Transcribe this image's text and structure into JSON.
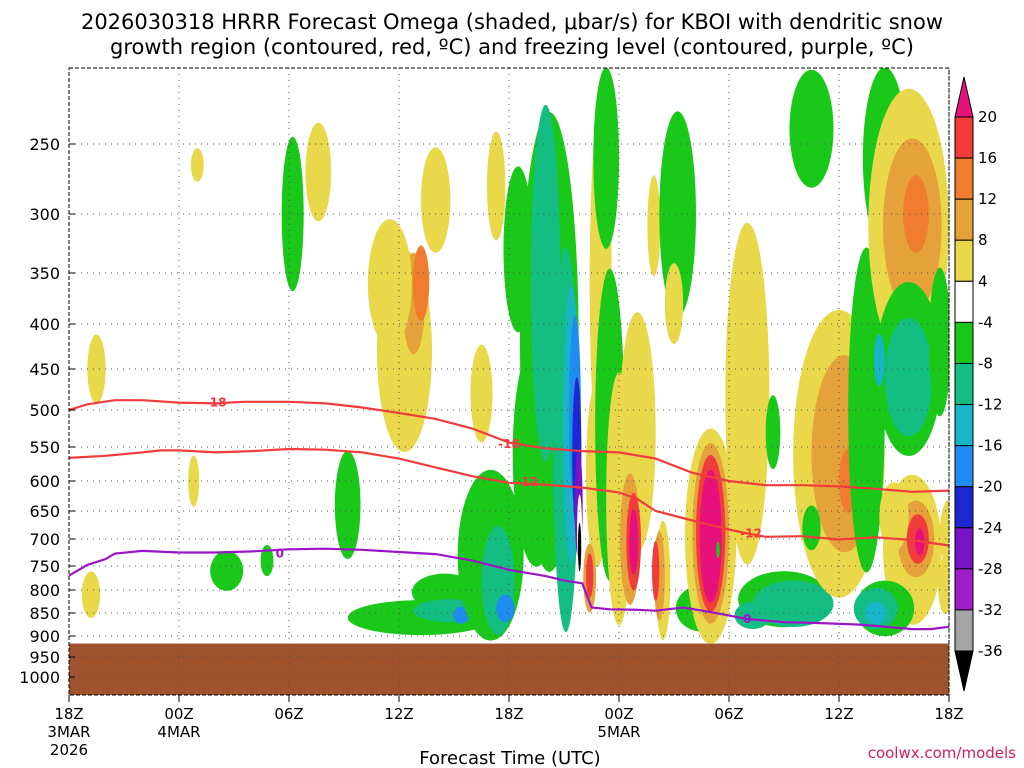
{
  "page": {
    "title_line1": "2026030318 HRRR Forecast Omega (shaded, μbar/s) for KBOI with dendritic snow",
    "title_line2": "growth region (contoured, red, ºC) and freezing level (contoured, purple, ºC)",
    "credit": "coolwx.com/models"
  },
  "chart_data": {
    "type": "heatmap",
    "title": "2026030318 HRRR Forecast Omega (shaded, μbar/s) for KBOI with dendritic snow growth region (contoured, red, ºC) and freezing level (contoured, purple, ºC)",
    "xlabel": "Forecast Time (UTC)",
    "ylabel": "",
    "x_hours_range": [
      0,
      48
    ],
    "y_pressure_range_hpa": [
      1050,
      200
    ],
    "y_axis": "pressure (hPa), reversed, log-like",
    "y_ticks": [
      250,
      300,
      350,
      400,
      450,
      500,
      550,
      600,
      650,
      700,
      750,
      800,
      850,
      900,
      950,
      1000
    ],
    "x_ticks": [
      {
        "hour": 0,
        "label": "18Z",
        "sub1": "3MAR",
        "sub2": "2026"
      },
      {
        "hour": 6,
        "label": "00Z",
        "sub1": "4MAR",
        "sub2": ""
      },
      {
        "hour": 12,
        "label": "06Z",
        "sub1": "",
        "sub2": ""
      },
      {
        "hour": 18,
        "label": "12Z",
        "sub1": "",
        "sub2": ""
      },
      {
        "hour": 24,
        "label": "18Z",
        "sub1": "",
        "sub2": ""
      },
      {
        "hour": 30,
        "label": "00Z",
        "sub1": "5MAR",
        "sub2": ""
      },
      {
        "hour": 36,
        "label": "06Z",
        "sub1": "",
        "sub2": ""
      },
      {
        "hour": 42,
        "label": "12Z",
        "sub1": "",
        "sub2": ""
      },
      {
        "hour": 48,
        "label": "18Z",
        "sub1": "",
        "sub2": ""
      }
    ],
    "ground_top_hpa": 918,
    "colorbar": {
      "labels": [
        "20",
        "16",
        "12",
        "8",
        "4",
        "-4",
        "-8",
        "-12",
        "-16",
        "-20",
        "-24",
        "-28",
        "-32",
        "-36"
      ],
      "bins": [
        {
          "color": "#e8107a"
        },
        {
          "color": "#f23c3c"
        },
        {
          "color": "#f07d2e"
        },
        {
          "color": "#e6a23a"
        },
        {
          "color": "#e8d84a"
        },
        {
          "color": "#ffffff"
        },
        {
          "color": "#19c819"
        },
        {
          "color": "#14be82"
        },
        {
          "color": "#18b4c8"
        },
        {
          "color": "#1e8cf0"
        },
        {
          "color": "#1c28d2"
        },
        {
          "color": "#7814c8"
        },
        {
          "color": "#a01ec8"
        },
        {
          "color": "#a5a5a5"
        },
        {
          "color": "#000000"
        }
      ]
    },
    "omega_regions": [
      {
        "h": 7.0,
        "p": 265,
        "dh": 0.35,
        "dp": 12,
        "color": "#e8d84a"
      },
      {
        "h": 1.5,
        "p": 450,
        "dh": 0.5,
        "dp": 40,
        "color": "#e8d84a"
      },
      {
        "h": 1.2,
        "p": 810,
        "dh": 0.5,
        "dp": 50,
        "color": "#e8d84a"
      },
      {
        "h": 6.8,
        "p": 600,
        "dh": 0.3,
        "dp": 40,
        "color": "#e8d84a"
      },
      {
        "h": 8.6,
        "p": 760,
        "dh": 0.9,
        "dp": 40,
        "color": "#19c819"
      },
      {
        "h": 10.8,
        "p": 740,
        "dh": 0.35,
        "dp": 30,
        "color": "#19c819"
      },
      {
        "h": 12.2,
        "p": 300,
        "dh": 0.6,
        "dp": 60,
        "color": "#19c819"
      },
      {
        "h": 13.6,
        "p": 270,
        "dh": 0.7,
        "dp": 35,
        "color": "#e8d84a"
      },
      {
        "h": 15.2,
        "p": 640,
        "dh": 0.7,
        "dp": 90,
        "color": "#19c819"
      },
      {
        "h": 18.3,
        "p": 430,
        "dh": 1.5,
        "dp": 110,
        "color": "#e8d84a"
      },
      {
        "h": 18.8,
        "p": 380,
        "dh": 0.6,
        "dp": 50,
        "color": "#e6a23a"
      },
      {
        "h": 19.2,
        "p": 360,
        "dh": 0.45,
        "dp": 35,
        "color": "#f07d2e"
      },
      {
        "h": 17.5,
        "p": 360,
        "dh": 1.2,
        "dp": 60,
        "color": "#e8d84a"
      },
      {
        "h": 20.0,
        "p": 290,
        "dh": 0.8,
        "dp": 40,
        "color": "#e8d84a"
      },
      {
        "h": 19.2,
        "p": 860,
        "dh": 4.0,
        "dp": 38,
        "color": "#19c819"
      },
      {
        "h": 20.5,
        "p": 805,
        "dh": 1.8,
        "dp": 40,
        "color": "#19c819"
      },
      {
        "h": 20.8,
        "p": 845,
        "dh": 2.0,
        "dp": 25,
        "color": "#14be82"
      },
      {
        "h": 21.4,
        "p": 855,
        "dh": 0.45,
        "dp": 18,
        "color": "#1e8cf0"
      },
      {
        "h": 23.0,
        "p": 730,
        "dh": 1.8,
        "dp": 160,
        "color": "#19c819"
      },
      {
        "h": 23.4,
        "p": 780,
        "dh": 0.9,
        "dp": 110,
        "color": "#14be82"
      },
      {
        "h": 23.8,
        "p": 840,
        "dh": 0.5,
        "dp": 30,
        "color": "#1e8cf0"
      },
      {
        "h": 22.5,
        "p": 480,
        "dh": 0.6,
        "dp": 60,
        "color": "#e8d84a"
      },
      {
        "h": 23.3,
        "p": 280,
        "dh": 0.5,
        "dp": 40,
        "color": "#e8d84a"
      },
      {
        "h": 24.5,
        "p": 330,
        "dh": 0.8,
        "dp": 70,
        "color": "#19c819"
      },
      {
        "h": 25.5,
        "p": 560,
        "dh": 1.3,
        "dp": 160,
        "color": "#19c819"
      },
      {
        "h": 26.2,
        "p": 420,
        "dh": 1.6,
        "dp": 260,
        "color": "#19c819"
      },
      {
        "h": 26.0,
        "p": 360,
        "dh": 0.8,
        "dp": 160,
        "color": "#14be82"
      },
      {
        "h": 27.1,
        "p": 540,
        "dh": 0.7,
        "dp": 250,
        "color": "#14be82"
      },
      {
        "h": 27.4,
        "p": 520,
        "dh": 0.45,
        "dp": 180,
        "color": "#18b4c8"
      },
      {
        "h": 27.6,
        "p": 500,
        "dh": 0.32,
        "dp": 120,
        "color": "#1e8cf0"
      },
      {
        "h": 27.7,
        "p": 560,
        "dh": 0.25,
        "dp": 110,
        "color": "#1c28d2"
      },
      {
        "h": 27.8,
        "p": 640,
        "dh": 0.22,
        "dp": 90,
        "color": "#7814c8"
      },
      {
        "h": 27.85,
        "p": 690,
        "dh": 0.14,
        "dp": 70,
        "color": "#ffffff"
      },
      {
        "h": 27.85,
        "p": 715,
        "dh": 0.09,
        "dp": 45,
        "color": "#000000"
      },
      {
        "h": 29.0,
        "p": 360,
        "dh": 0.6,
        "dp": 160,
        "color": "#e8d84a"
      },
      {
        "h": 28.8,
        "p": 590,
        "dh": 0.6,
        "dp": 140,
        "color": "#e8d84a"
      },
      {
        "h": 29.3,
        "p": 260,
        "dh": 0.7,
        "dp": 70,
        "color": "#19c819"
      },
      {
        "h": 29.5,
        "p": 520,
        "dh": 0.8,
        "dp": 200,
        "color": "#19c819"
      },
      {
        "h": 28.4,
        "p": 775,
        "dh": 0.35,
        "dp": 70,
        "color": "#e6a23a"
      },
      {
        "h": 28.4,
        "p": 770,
        "dh": 0.2,
        "dp": 45,
        "color": "#f23c3c"
      },
      {
        "h": 31.0,
        "p": 530,
        "dh": 1.0,
        "dp": 160,
        "color": "#e8d84a"
      },
      {
        "h": 30.0,
        "p": 630,
        "dh": 0.7,
        "dp": 200,
        "color": "#e8d84a"
      },
      {
        "h": 30.6,
        "p": 700,
        "dh": 0.55,
        "dp": 120,
        "color": "#e6a23a"
      },
      {
        "h": 30.8,
        "p": 705,
        "dh": 0.4,
        "dp": 90,
        "color": "#f23c3c"
      },
      {
        "h": 30.8,
        "p": 705,
        "dh": 0.25,
        "dp": 60,
        "color": "#e8107a"
      },
      {
        "h": 32.4,
        "p": 780,
        "dh": 0.4,
        "dp": 120,
        "color": "#e8d84a"
      },
      {
        "h": 32.2,
        "p": 770,
        "dh": 0.3,
        "dp": 90,
        "color": "#e6a23a"
      },
      {
        "h": 32.0,
        "p": 760,
        "dh": 0.2,
        "dp": 60,
        "color": "#f23c3c"
      },
      {
        "h": 31.9,
        "p": 310,
        "dh": 0.35,
        "dp": 40,
        "color": "#e8d84a"
      },
      {
        "h": 33.2,
        "p": 300,
        "dh": 1.0,
        "dp": 80,
        "color": "#19c819"
      },
      {
        "h": 33.0,
        "p": 380,
        "dh": 0.5,
        "dp": 40,
        "color": "#e8d84a"
      },
      {
        "h": 34.5,
        "p": 840,
        "dh": 1.4,
        "dp": 50,
        "color": "#19c819"
      },
      {
        "h": 35.0,
        "p": 760,
        "dh": 1.2,
        "dp": 140,
        "color": "#e8d84a"
      },
      {
        "h": 35.0,
        "p": 695,
        "dh": 1.4,
        "dp": 190,
        "color": "#e8d84a"
      },
      {
        "h": 35.0,
        "p": 690,
        "dh": 1.0,
        "dp": 160,
        "color": "#e6a23a"
      },
      {
        "h": 35.0,
        "p": 690,
        "dh": 0.8,
        "dp": 140,
        "color": "#f23c3c"
      },
      {
        "h": 35.0,
        "p": 695,
        "dh": 0.6,
        "dp": 120,
        "color": "#e8107a"
      },
      {
        "h": 35.4,
        "p": 720,
        "dh": 0.1,
        "dp": 15,
        "color": "#19c819"
      },
      {
        "h": 37.0,
        "p": 480,
        "dh": 1.2,
        "dp": 200,
        "color": "#e8d84a"
      },
      {
        "h": 38.4,
        "p": 530,
        "dh": 0.4,
        "dp": 50,
        "color": "#19c819"
      },
      {
        "h": 39.0,
        "p": 820,
        "dh": 2.5,
        "dp": 60,
        "color": "#19c819"
      },
      {
        "h": 39.5,
        "p": 830,
        "dh": 2.2,
        "dp": 50,
        "color": "#14be82"
      },
      {
        "h": 37.3,
        "p": 855,
        "dh": 1.0,
        "dp": 30,
        "color": "#14be82"
      },
      {
        "h": 42.0,
        "p": 560,
        "dh": 2.5,
        "dp": 200,
        "color": "#e8d84a"
      },
      {
        "h": 42.3,
        "p": 560,
        "dh": 1.8,
        "dp": 140,
        "color": "#e6a23a"
      },
      {
        "h": 42.5,
        "p": 600,
        "dh": 0.5,
        "dp": 50,
        "color": "#f07d2e"
      },
      {
        "h": 40.5,
        "p": 240,
        "dh": 1.2,
        "dp": 40,
        "color": "#19c819"
      },
      {
        "h": 43.5,
        "p": 500,
        "dh": 1.0,
        "dp": 200,
        "color": "#19c819"
      },
      {
        "h": 44.5,
        "p": 260,
        "dh": 1.2,
        "dp": 70,
        "color": "#19c819"
      },
      {
        "h": 45.8,
        "p": 310,
        "dh": 2.2,
        "dp": 110,
        "color": "#e8d84a"
      },
      {
        "h": 46.0,
        "p": 310,
        "dh": 1.6,
        "dp": 70,
        "color": "#e6a23a"
      },
      {
        "h": 46.2,
        "p": 300,
        "dh": 0.7,
        "dp": 30,
        "color": "#f07d2e"
      },
      {
        "h": 45.8,
        "p": 450,
        "dh": 1.8,
        "dp": 100,
        "color": "#19c819"
      },
      {
        "h": 45.8,
        "p": 460,
        "dh": 1.3,
        "dp": 70,
        "color": "#14be82"
      },
      {
        "h": 44.2,
        "p": 440,
        "dh": 0.3,
        "dp": 30,
        "color": "#18b4c8"
      },
      {
        "h": 47.5,
        "p": 420,
        "dh": 0.6,
        "dp": 80,
        "color": "#19c819"
      },
      {
        "h": 46.0,
        "p": 720,
        "dh": 1.6,
        "dp": 140,
        "color": "#e8d84a"
      },
      {
        "h": 46.2,
        "p": 700,
        "dh": 1.0,
        "dp": 70,
        "color": "#e6a23a"
      },
      {
        "h": 46.3,
        "p": 700,
        "dh": 0.6,
        "dp": 45,
        "color": "#f23c3c"
      },
      {
        "h": 46.4,
        "p": 705,
        "dh": 0.25,
        "dp": 25,
        "color": "#e8107a"
      },
      {
        "h": 45.0,
        "p": 660,
        "dh": 0.8,
        "dp": 60,
        "color": "#e8d84a"
      },
      {
        "h": 44.5,
        "p": 840,
        "dh": 1.6,
        "dp": 60,
        "color": "#19c819"
      },
      {
        "h": 44.0,
        "p": 840,
        "dh": 1.2,
        "dp": 45,
        "color": "#14be82"
      },
      {
        "h": 44.0,
        "p": 850,
        "dh": 0.6,
        "dp": 25,
        "color": "#18b4c8"
      },
      {
        "h": 47.8,
        "p": 790,
        "dh": 0.4,
        "dp": 60,
        "color": "#e8d84a"
      },
      {
        "h": 40.5,
        "p": 680,
        "dh": 0.5,
        "dp": 40,
        "color": "#19c819"
      },
      {
        "h": 48.0,
        "p": 690,
        "dh": 0.5,
        "dp": 60,
        "color": "#e8d84a"
      }
    ],
    "contours": [
      {
        "name": "dgz-minus-18",
        "color": "#f03c3c",
        "label": "-18",
        "label_at": [
          [
            8.0,
            491
          ],
          [
            24.0,
            546
          ]
        ],
        "points": [
          [
            0,
            500
          ],
          [
            1,
            493
          ],
          [
            2.5,
            488
          ],
          [
            4,
            488
          ],
          [
            6,
            491
          ],
          [
            8,
            492
          ],
          [
            9.5,
            490
          ],
          [
            12,
            490
          ],
          [
            14,
            492
          ],
          [
            16,
            497
          ],
          [
            18,
            504
          ],
          [
            20,
            512
          ],
          [
            22,
            525
          ],
          [
            24,
            544
          ],
          [
            26,
            552
          ],
          [
            28,
            556
          ],
          [
            30,
            558
          ],
          [
            32,
            567
          ],
          [
            34,
            588
          ],
          [
            36,
            600
          ],
          [
            38,
            607
          ],
          [
            40,
            607
          ],
          [
            42,
            609
          ],
          [
            44,
            613
          ],
          [
            46,
            618
          ],
          [
            48,
            616
          ]
        ]
      },
      {
        "name": "dgz-minus-12",
        "color": "#f03c3c",
        "label": "-12",
        "label_at": [
          [
            25.0,
            602
          ],
          [
            37.2,
            690
          ]
        ],
        "points": [
          [
            0,
            566
          ],
          [
            2,
            563
          ],
          [
            4,
            558
          ],
          [
            5,
            555
          ],
          [
            6,
            555
          ],
          [
            8,
            558
          ],
          [
            10,
            556
          ],
          [
            12,
            553
          ],
          [
            14,
            554
          ],
          [
            16,
            558
          ],
          [
            18,
            567
          ],
          [
            20,
            580
          ],
          [
            22,
            593
          ],
          [
            24,
            603
          ],
          [
            26,
            606
          ],
          [
            28,
            611
          ],
          [
            30,
            619
          ],
          [
            31,
            630
          ],
          [
            32,
            650
          ],
          [
            34,
            667
          ],
          [
            36,
            683
          ],
          [
            37,
            690
          ],
          [
            38,
            696
          ],
          [
            40,
            695
          ],
          [
            42,
            701
          ],
          [
            44,
            697
          ],
          [
            46,
            702
          ],
          [
            48,
            712
          ]
        ]
      },
      {
        "name": "freezing-level-0",
        "color": "#9b14c8",
        "label": "0",
        "label_at": [
          [
            11.5,
            727
          ],
          [
            37.0,
            863
          ]
        ],
        "points": [
          [
            0,
            770
          ],
          [
            1,
            748
          ],
          [
            2,
            737
          ],
          [
            2.5,
            727
          ],
          [
            4,
            722
          ],
          [
            6,
            725
          ],
          [
            8,
            725
          ],
          [
            10,
            723
          ],
          [
            12,
            719
          ],
          [
            14,
            718
          ],
          [
            16,
            720
          ],
          [
            18,
            724
          ],
          [
            20,
            728
          ],
          [
            22,
            740
          ],
          [
            24,
            758
          ],
          [
            26,
            771
          ],
          [
            27,
            780
          ],
          [
            28,
            786
          ],
          [
            28.5,
            838
          ],
          [
            29.5,
            842
          ],
          [
            31,
            843
          ],
          [
            32,
            845
          ],
          [
            33.5,
            838
          ],
          [
            35,
            848
          ],
          [
            37,
            863
          ],
          [
            39,
            870
          ],
          [
            41,
            872
          ],
          [
            43,
            875
          ],
          [
            44,
            878
          ],
          [
            46,
            885
          ],
          [
            47,
            885
          ],
          [
            48,
            880
          ]
        ]
      }
    ]
  }
}
